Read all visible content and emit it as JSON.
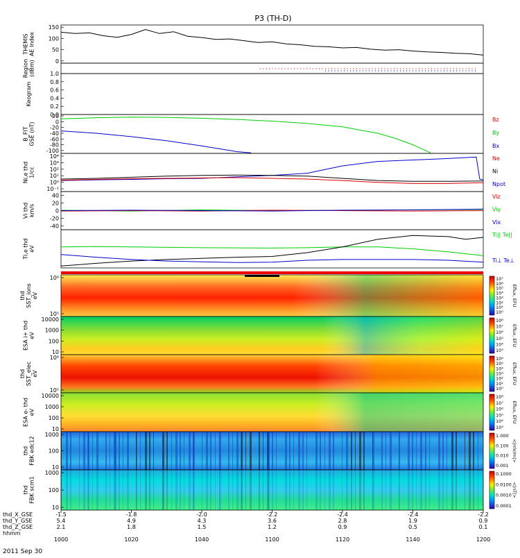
{
  "chart_data": {
    "type": "line",
    "title": "P3 (TH-D)",
    "date_label": "2011 Sep 30",
    "x_time_ticks": [
      "1000",
      "1020",
      "1040",
      "1100",
      "1120",
      "1140",
      "1200"
    ],
    "x_axis_rows": [
      {
        "label": "thd_X_GSE",
        "values": [
          "-1.5",
          "-1.8",
          "-2.0",
          "-2.2",
          "-2.4",
          "-2.4",
          "-2.2"
        ]
      },
      {
        "label": "thd_Y_GSE",
        "values": [
          "5.4",
          "4.9",
          "4.3",
          "3.6",
          "2.8",
          "1.9",
          "0.9"
        ]
      },
      {
        "label": "thd_Z_GSE",
        "values": [
          "2.1",
          "1.8",
          "1.5",
          "1.2",
          "0.9",
          "0.5",
          "0.1"
        ]
      },
      {
        "label": "hhmm",
        "values": [
          "",
          "",
          "",
          "",
          "",
          "",
          ""
        ]
      }
    ],
    "panels": [
      {
        "id": "ae",
        "ylabel": [
          "THEMIS",
          "AE Index"
        ],
        "y_ticks": [
          "150",
          "100",
          "50",
          "0"
        ],
        "ylim": [
          -10,
          160
        ],
        "series": [
          {
            "color": "#000000",
            "x": [
              0,
              4,
              8,
              12,
              16,
              20,
              24,
              28,
              32,
              36,
              40,
              44,
              48,
              52,
              56,
              60,
              64,
              68,
              72,
              76,
              80,
              84,
              88,
              92,
              96,
              100,
              104,
              108,
              112,
              116,
              120
            ],
            "values": [
              128,
              122,
              125,
              112,
              105,
              118,
              140,
              122,
              130,
              110,
              104,
              96,
              98,
              90,
              82,
              85,
              76,
              72,
              65,
              63,
              58,
              60,
              52,
              48,
              50,
              44,
              40,
              38,
              34,
              32,
              26
            ]
          }
        ]
      },
      {
        "id": "region",
        "ylabel": [
          "Region",
          "(dBm)"
        ],
        "y_ticks": []
      },
      {
        "id": "keogram",
        "ylabel": [
          "Keogram"
        ],
        "y_ticks": [
          "1.0",
          "0.8",
          "0.6",
          "0.4",
          "0.2",
          "0.0"
        ],
        "ylim": [
          0,
          1
        ]
      },
      {
        "id": "bfgm",
        "ylabel": [
          "B_FIT",
          "GSE (nT)"
        ],
        "y_ticks": [
          "20",
          "0",
          "-20",
          "-40",
          "-60",
          "-80",
          "-100"
        ],
        "ylim": [
          -110,
          25
        ],
        "legend": [
          "Bz",
          "By",
          "Bx"
        ],
        "legend_colors": [
          "#dd0000",
          "#00cc00",
          "#0000cc"
        ],
        "series": [
          {
            "color": "#00cc00",
            "x": [
              0,
              10,
              20,
              30,
              40,
              50,
              60,
              70,
              80,
              90,
              95,
              100,
              105
            ],
            "values": [
              10,
              14,
              16,
              15,
              12,
              8,
              2,
              -6,
              -18,
              -40,
              -58,
              -80,
              -108
            ]
          },
          {
            "color": "#0000cc",
            "x": [
              0,
              10,
              20,
              30,
              40,
              50,
              54
            ],
            "values": [
              -32,
              -40,
              -52,
              -66,
              -84,
              -104,
              -108
            ]
          }
        ]
      },
      {
        "id": "density",
        "ylabel": [
          "Ni,e thd",
          "1/cc"
        ],
        "y_ticks": [
          "10⁴",
          "10³",
          "10²",
          "10¹",
          "10⁰",
          "10⁻¹"
        ],
        "ylim": [
          -1.2,
          4
        ],
        "log": true,
        "legend": [
          "Ne",
          "Ni",
          "Npot"
        ],
        "legend_colors": [
          "#dd0000",
          "#000000",
          "#0000cc"
        ],
        "series": [
          {
            "color": "#0000cc",
            "x": [
              0,
              10,
              20,
              30,
              40,
              50,
              60,
              70,
              75,
              80,
              85,
              90,
              100,
              110,
              118,
              119,
              120
            ],
            "values": [
              0.3,
              0.4,
              0.45,
              0.55,
              0.6,
              0.8,
              1.0,
              1.3,
              1.8,
              2.3,
              2.6,
              2.9,
              3.1,
              3.3,
              3.5,
              0.5,
              0.4
            ]
          },
          {
            "color": "#000000",
            "x": [
              0,
              10,
              20,
              30,
              40,
              50,
              60,
              70,
              80,
              90,
              100,
              110,
              120
            ],
            "values": [
              0.5,
              0.6,
              0.75,
              0.9,
              1.0,
              1.05,
              1.0,
              0.9,
              0.6,
              0.3,
              0.2,
              0.2,
              0.25
            ]
          },
          {
            "color": "#dd0000",
            "x": [
              0,
              10,
              20,
              30,
              40,
              50,
              60,
              70,
              80,
              90,
              100,
              110,
              120
            ],
            "values": [
              0.35,
              0.45,
              0.55,
              0.6,
              0.65,
              0.7,
              0.6,
              0.5,
              0.3,
              0.05,
              -0.1,
              -0.1,
              0.0
            ]
          }
        ]
      },
      {
        "id": "velocity",
        "ylabel": [
          "Vi thd",
          "km/s"
        ],
        "y_ticks": [
          "40",
          "20",
          "0",
          "-20",
          "-40"
        ],
        "ylim": [
          -50,
          50
        ],
        "legend": [
          "Viz",
          "Viy",
          "Vix"
        ],
        "legend_colors": [
          "#dd0000",
          "#00cc00",
          "#0000cc"
        ],
        "series": [
          {
            "color": "#00cc00",
            "x": [
              0,
              20,
              40,
              60,
              80,
              100,
              120
            ],
            "values": [
              1,
              -1,
              2,
              0,
              1,
              2,
              3
            ]
          },
          {
            "color": "#dd0000",
            "x": [
              0,
              20,
              40,
              60,
              80,
              100,
              120
            ],
            "values": [
              -1,
              0,
              -1,
              1,
              0,
              -1,
              0
            ]
          },
          {
            "color": "#0000cc",
            "x": [
              0,
              20,
              40,
              60,
              80,
              100,
              120
            ],
            "values": [
              0,
              1,
              0,
              -1,
              1,
              2,
              4
            ]
          }
        ]
      },
      {
        "id": "temperature",
        "ylabel": [
          "Ti,e thd",
          "eV"
        ],
        "y_ticks": [],
        "legend": [
          "Ti|| Te||",
          "Ti⊥ Te⊥"
        ],
        "legend_colors": [
          "#00cc00",
          "#0000cc"
        ],
        "series": [
          {
            "color": "#00cc00",
            "x": [
              0,
              10,
              20,
              40,
              60,
              70,
              80,
              90,
              100,
              110,
              120
            ],
            "values": [
              0.55,
              0.56,
              0.55,
              0.53,
              0.52,
              0.53,
              0.55,
              0.55,
              0.5,
              0.42,
              0.32
            ]
          },
          {
            "color": "#000000",
            "x": [
              0,
              10,
              20,
              30,
              40,
              50,
              60,
              70,
              80,
              90,
              100,
              110,
              115,
              120
            ],
            "values": [
              0.05,
              0.12,
              0.18,
              0.22,
              0.25,
              0.28,
              0.3,
              0.4,
              0.55,
              0.75,
              0.85,
              0.82,
              0.75,
              0.8
            ]
          },
          {
            "color": "#0000cc",
            "x": [
              0,
              10,
              20,
              30,
              40,
              50,
              60,
              70,
              80,
              90,
              100,
              110,
              120
            ],
            "values": [
              0.35,
              0.28,
              0.22,
              0.18,
              0.16,
              0.14,
              0.15,
              0.2,
              0.22,
              0.22,
              0.22,
              0.2,
              0.15
            ]
          }
        ]
      },
      {
        "id": "sst-ions",
        "ylabel": [
          "thd",
          "SST_ions",
          "eV"
        ],
        "y_ticks": [
          "10⁶",
          "10⁵"
        ],
        "colorbar_ticks": [
          "10⁷",
          "10⁶",
          "10⁵",
          "10⁴",
          "10³",
          "10²",
          "10¹",
          "10⁰"
        ],
        "colorbar_label": "Eflux, EFU"
      },
      {
        "id": "esa-ions",
        "ylabel": [
          "ESA i+ thd",
          "eV"
        ],
        "y_ticks": [
          "10000",
          "1000",
          "100",
          "10"
        ],
        "colorbar_ticks": [
          "10⁸",
          "10⁷",
          "10⁶",
          "10⁵",
          "10⁴",
          "10³"
        ],
        "colorbar_label": "Eflux, EFU"
      },
      {
        "id": "sst-elec",
        "ylabel": [
          "thd",
          "SST_elec",
          "eV"
        ],
        "y_ticks": [
          "10⁶",
          "10⁵"
        ],
        "colorbar_ticks": [
          "10⁶",
          "10⁵",
          "10⁴",
          "10³",
          "10²",
          "10¹",
          "10⁰"
        ],
        "colorbar_label": "Eflux, EFU"
      },
      {
        "id": "esa-elec",
        "ylabel": [
          "ESA e- thd",
          "eV"
        ],
        "y_ticks": [
          "10000",
          "1000",
          "100",
          "10"
        ],
        "colorbar_ticks": [
          "10⁸",
          "10⁷",
          "10⁶",
          "10⁵",
          "10⁴",
          "10³"
        ],
        "colorbar_label": "Eflux, EFU"
      },
      {
        "id": "fbk-edc12",
        "ylabel": [
          "thd",
          "FBK edc12"
        ],
        "y_ticks": [
          "1000",
          "100",
          "10"
        ],
        "colorbar_ticks": [
          "1.000",
          "0.100",
          "0.010",
          "0.001"
        ],
        "colorbar_label": "<|mV/m|>"
      },
      {
        "id": "fbk-scm1",
        "ylabel": [
          "thd",
          "FBK scm1"
        ],
        "y_ticks": [
          "1000",
          "100",
          "10"
        ],
        "colorbar_ticks": [
          "0.1000",
          "0.0100",
          "0.0010",
          "0.0001"
        ],
        "colorbar_label": "<|nT|>"
      }
    ]
  }
}
